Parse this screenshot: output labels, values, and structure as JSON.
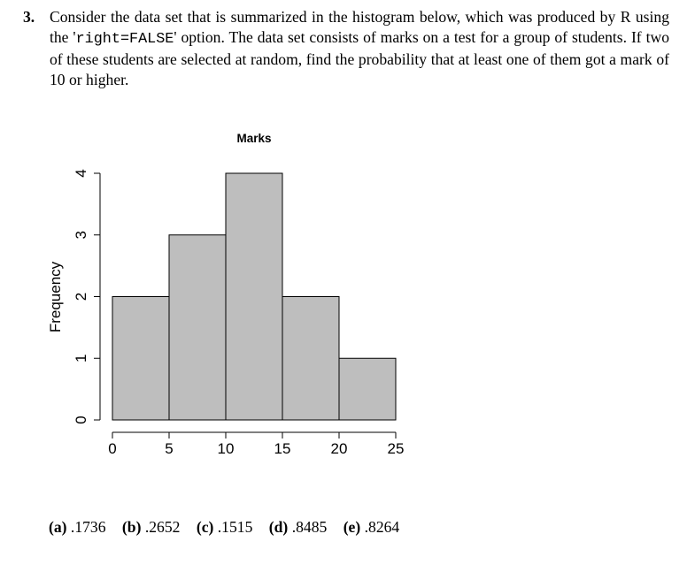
{
  "question": {
    "number": "3.",
    "text_before": "Consider the data set that is summarized in the histogram below, which was produced by R using the '",
    "code": "right=FALSE",
    "text_after": "' option.  The data set consists of marks on a test for a group of students.  If two of these students are selected at random, find the probability that at least one of them got a mark of 10 or higher."
  },
  "chart_data": {
    "type": "bar",
    "title": "Marks",
    "xlabel": "",
    "ylabel": "Frequency",
    "bins": [
      [
        0,
        5
      ],
      [
        5,
        10
      ],
      [
        10,
        15
      ],
      [
        15,
        20
      ],
      [
        20,
        25
      ]
    ],
    "values": [
      2,
      3,
      4,
      2,
      1
    ],
    "xlim": [
      0,
      25
    ],
    "ylim": [
      0,
      4
    ],
    "x_ticks": [
      "0",
      "5",
      "10",
      "15",
      "20",
      "25"
    ],
    "y_ticks": [
      "0",
      "1",
      "2",
      "3",
      "4"
    ],
    "bar_color": "#bebebe",
    "grid": false
  },
  "answers": [
    {
      "letter": "(a)",
      "value": ".1736"
    },
    {
      "letter": "(b)",
      "value": ".2652"
    },
    {
      "letter": "(c)",
      "value": ".1515"
    },
    {
      "letter": "(d)",
      "value": ".8485"
    },
    {
      "letter": "(e)",
      "value": ".8264"
    }
  ]
}
